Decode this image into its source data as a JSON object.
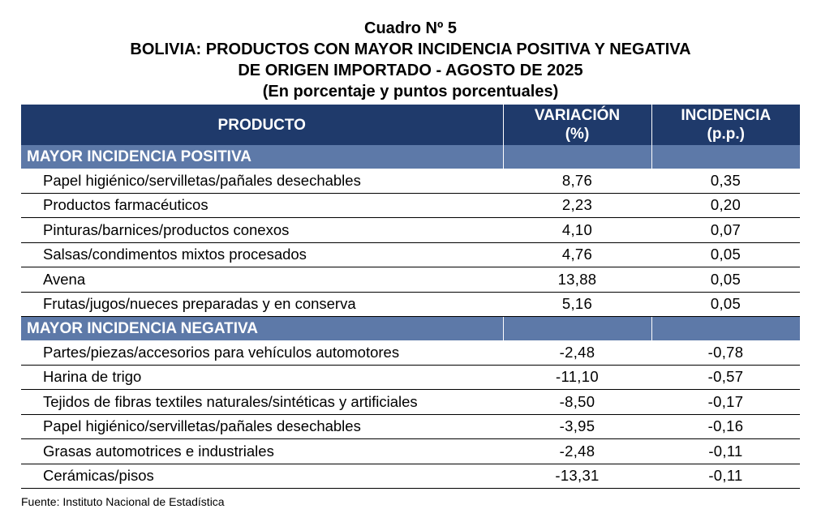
{
  "title": {
    "line1": "Cuadro Nº 5",
    "line2": "BOLIVIA: PRODUCTOS CON MAYOR INCIDENCIA POSITIVA Y NEGATIVA",
    "line3": "DE ORIGEN IMPORTADO - AGOSTO DE 2025",
    "line4": "(En porcentaje y puntos porcentuales)"
  },
  "header": {
    "producto": "PRODUCTO",
    "variacion_line1": "VARIACIÓN",
    "variacion_line2": "(%)",
    "incidencia_line1": "INCIDENCIA",
    "incidencia_line2": "(p.p.)"
  },
  "positive": {
    "label": "MAYOR INCIDENCIA POSITIVA",
    "rows": [
      {
        "producto": "Papel higiénico/servilletas/pañales desechables",
        "variacion": "8,76",
        "incidencia": "0,35"
      },
      {
        "producto": "Productos farmacéuticos",
        "variacion": "2,23",
        "incidencia": "0,20"
      },
      {
        "producto": "Pinturas/barnices/productos conexos",
        "variacion": "4,10",
        "incidencia": "0,07"
      },
      {
        "producto": "Salsas/condimentos mixtos procesados",
        "variacion": "4,76",
        "incidencia": "0,05"
      },
      {
        "producto": "Avena",
        "variacion": "13,88",
        "incidencia": "0,05"
      },
      {
        "producto": "Frutas/jugos/nueces preparadas y en conserva",
        "variacion": "5,16",
        "incidencia": "0,05"
      }
    ]
  },
  "negative": {
    "label": "MAYOR INCIDENCIA NEGATIVA",
    "rows": [
      {
        "producto": "Partes/piezas/accesorios para vehículos automotores",
        "variacion": "-2,48",
        "incidencia": "-0,78"
      },
      {
        "producto": "Harina de trigo",
        "variacion": "-11,10",
        "incidencia": "-0,57"
      },
      {
        "producto": "Tejidos de fibras textiles naturales/sintéticas y artificiales",
        "variacion": "-8,50",
        "incidencia": "-0,17"
      },
      {
        "producto": "Papel higiénico/servilletas/pañales desechables",
        "variacion": "-3,95",
        "incidencia": "-0,16"
      },
      {
        "producto": "Grasas automotrices e industriales",
        "variacion": "-2,48",
        "incidencia": "-0,11"
      },
      {
        "producto": "Cerámicas/pisos",
        "variacion": "-13,31",
        "incidencia": "-0,11"
      }
    ]
  },
  "source": "Fuente: Instituto Nacional de Estadística"
}
